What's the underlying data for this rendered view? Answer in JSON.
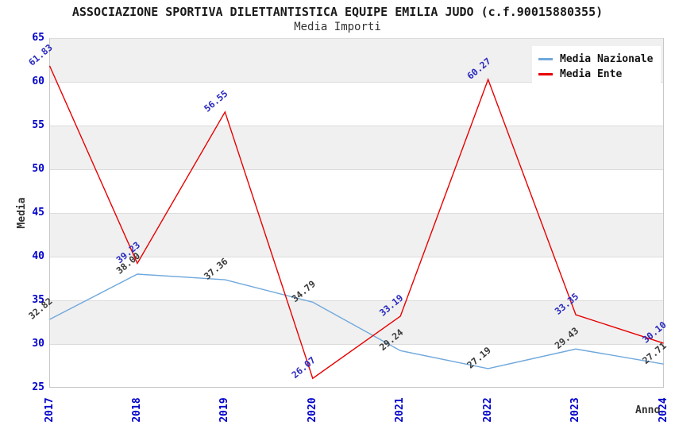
{
  "header": {
    "title": "ASSOCIAZIONE SPORTIVA DILETTANTISTICA EQUIPE EMILIA JUDO (c.f.90015880355)",
    "subtitle": "Media Importi"
  },
  "chart_data": {
    "type": "line",
    "title": "ASSOCIAZIONE SPORTIVA DILETTANTISTICA EQUIPE EMILIA JUDO (c.f.90015880355)",
    "subtitle": "Media Importi",
    "xlabel": "Anno",
    "ylabel": "Media",
    "categories": [
      "2017",
      "2018",
      "2019",
      "2020",
      "2021",
      "2022",
      "2023",
      "2024"
    ],
    "ylim": [
      25,
      65
    ],
    "ytick_step": 5,
    "grid": "horizontal-bands",
    "legend_position": "top-right",
    "band_colors": [
      "#f0f0f0",
      "#ffffff"
    ],
    "gridline_color": "#dcdcdc",
    "axis_border_color": "#c8c8c8",
    "tick_label_color": "#0000cc",
    "series": [
      {
        "name": "Media Nazionale",
        "color": "#6fa8dc",
        "label_color": "#3a3a3a",
        "values": [
          32.82,
          38.0,
          37.36,
          34.79,
          29.24,
          27.19,
          29.43,
          27.71
        ]
      },
      {
        "name": "Media Ente",
        "color": "#e80000",
        "label_color": "#2a2ac0",
        "values": [
          61.83,
          39.23,
          56.55,
          26.07,
          33.19,
          60.27,
          33.35,
          30.1
        ]
      }
    ]
  }
}
